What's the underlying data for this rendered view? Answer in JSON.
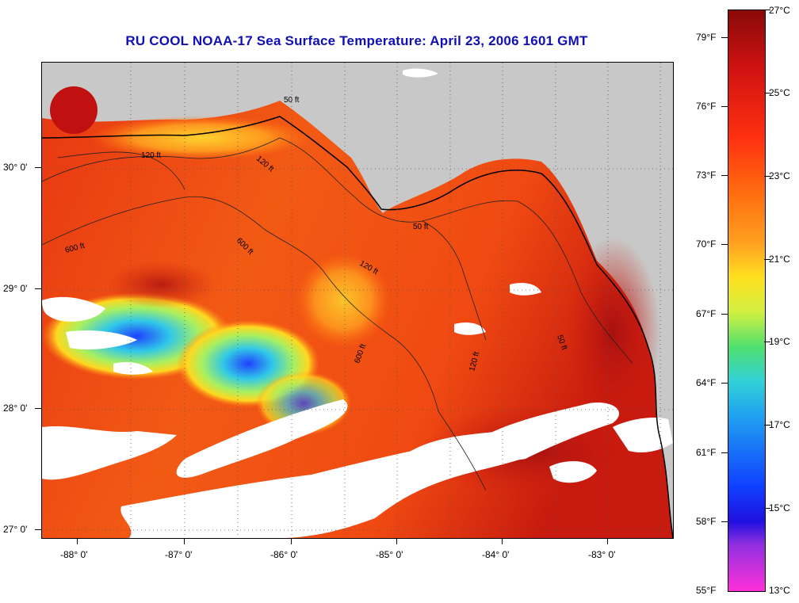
{
  "title": "RU COOL  NOAA-17  Sea Surface Temperature:  April 23, 2006 1601 GMT",
  "colors": {
    "title": "#1010b4",
    "land": "#c8c8c8",
    "cloud": "#ffffff",
    "sst_warm": "#e03010",
    "sst_hot": "#a01010",
    "sst_mid": "#ff6a10",
    "sst_yellow": "#ffe020",
    "sst_cyan": "#30d0e0",
    "sst_blue": "#2040ff"
  },
  "map": {
    "lat_labels": [
      "30° 0'",
      "29° 0'",
      "28° 0'",
      "27° 0'"
    ],
    "lon_labels": [
      "-88° 0'",
      "-87° 0'",
      "-86° 0'",
      "-85° 0'",
      "-84° 0'",
      "-83° 0'"
    ],
    "contour_labels": [
      "120 ft",
      "50 ft",
      "600 ft",
      "120 ft",
      "50 ft",
      "120 ft",
      "600 ft",
      "50 ft",
      "120 ft",
      "600 ft"
    ]
  },
  "colorbar": {
    "celsius": [
      "27°C",
      "25°C",
      "23°C",
      "21°C",
      "19°C",
      "17°C",
      "15°C",
      "13°C"
    ],
    "fahrenheit": [
      "79°F",
      "76°F",
      "73°F",
      "70°F",
      "67°F",
      "64°F",
      "61°F",
      "58°F",
      "55°F"
    ]
  }
}
